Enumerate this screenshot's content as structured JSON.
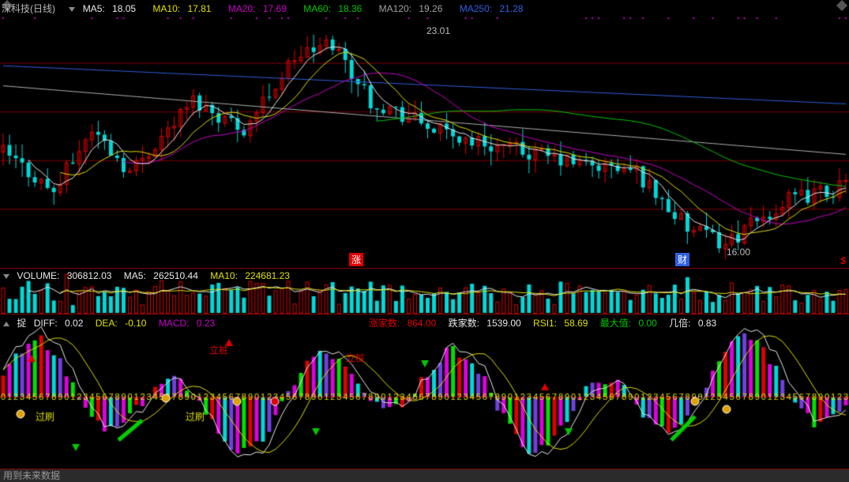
{
  "title": {
    "name": "深科技(日线)"
  },
  "ma_header": {
    "ma5": {
      "label": "MA5:",
      "value": "18.05",
      "color": "#e8e8e8"
    },
    "ma10": {
      "label": "MA10:",
      "value": "17.81",
      "color": "#e0e000"
    },
    "ma20": {
      "label": "MA20:",
      "value": "17.69",
      "color": "#c800c8"
    },
    "ma60": {
      "label": "MA60:",
      "value": "18.36",
      "color": "#00c800"
    },
    "ma120": {
      "label": "MA120:",
      "value": "19.26",
      "color": "#a0a0a0"
    },
    "ma250": {
      "label": "MA250:",
      "value": "21.28",
      "color": "#3060e0"
    }
  },
  "price_labels": {
    "high": "23.01",
    "low": "16.00"
  },
  "price_markers": {
    "zhang": {
      "text": "涨",
      "color": "#e00000"
    },
    "cai": {
      "text": "财",
      "color": "#3060e0"
    },
    "s": {
      "text": "$",
      "color": "#e00000"
    }
  },
  "volume_header": {
    "vol": {
      "label": "VOLUME:",
      "value": "306812.03",
      "color": "#e8e8e8"
    },
    "ma5": {
      "label": "MA5:",
      "value": "262510.44",
      "color": "#e8e8e8"
    },
    "ma10": {
      "label": "MA10:",
      "value": "224681.23",
      "color": "#e0e000"
    }
  },
  "macd_header": {
    "zhuo": {
      "label": "捉",
      "color": "#e8e8e8"
    },
    "diff": {
      "label": "DIFF:",
      "value": "0.02",
      "color": "#e8e8e8"
    },
    "dea": {
      "label": "DEA:",
      "value": "-0.10",
      "color": "#e0e000"
    },
    "macd": {
      "label": "MACD:",
      "value": "0.23",
      "color": "#c800c8"
    },
    "zhang": {
      "label": "涨家数:",
      "value": "864.00",
      "color": "#e00000"
    },
    "die": {
      "label": "跌家数:",
      "value": "1539.00",
      "color": "#e8e8e8"
    },
    "rsi": {
      "label": "RSI1:",
      "value": "58.69",
      "color": "#e0e000"
    },
    "max": {
      "label": "最大值:",
      "value": "0.00",
      "color": "#00c800"
    },
    "jibei": {
      "label": "几倍:",
      "value": "0.83",
      "color": "#e8e8e8"
    }
  },
  "macd_text_markers": {
    "lizhuang": "立桩",
    "guoshan": "过刷"
  },
  "footer": {
    "text": "用到未来数据"
  },
  "chart": {
    "bar_count": 134,
    "price_range": {
      "min": 15.5,
      "max": 24.0
    },
    "grid_y_lines": 4,
    "candle_colors": {
      "up_outline": "#e00000",
      "down_fill": "#00d8d8"
    },
    "ma_line_colors": {
      "ma5": "#e8e8e8",
      "ma10": "#e0e000",
      "ma20": "#c800c8",
      "ma60": "#00c800",
      "ma120": "#b0b0b0",
      "ma250": "#3060e0"
    },
    "vol_max": 650000,
    "candles_seed": 42,
    "macd_cluster_colors": [
      "#e00000",
      "#e000e0",
      "#00d8d8",
      "#7040e0",
      "#e000e0",
      "#00e000"
    ],
    "macd_digit_color": "#e0e000",
    "dot_color": "#c800c8"
  }
}
